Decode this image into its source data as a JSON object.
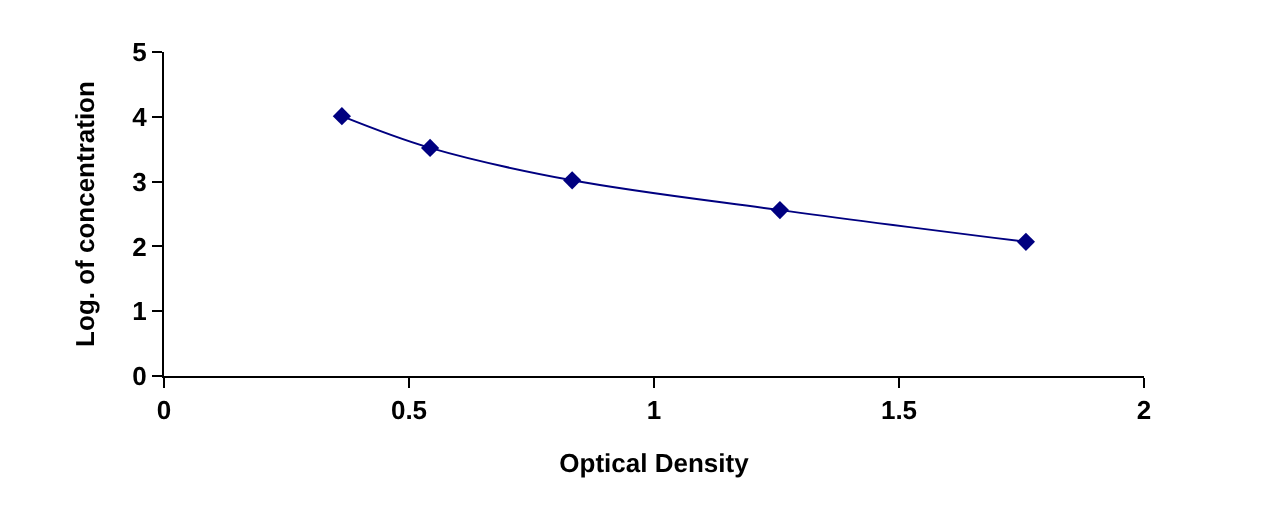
{
  "chart_data": {
    "type": "line",
    "xlabel": "Optical Density",
    "ylabel": "Log. of concentration",
    "series": [
      {
        "color": "#000080",
        "x": [
          0.363,
          0.543,
          0.833,
          1.257,
          1.759
        ],
        "values": [
          4.01,
          3.52,
          3.02,
          2.56,
          2.07
        ]
      }
    ],
    "xlim": [
      0,
      2
    ],
    "xticks": [
      0,
      0.5,
      1,
      1.5,
      2
    ],
    "ylim": [
      0,
      5
    ],
    "yticks": [
      0,
      1,
      2,
      3,
      4,
      5
    ],
    "marker": "diamond",
    "line_style": "solid"
  }
}
